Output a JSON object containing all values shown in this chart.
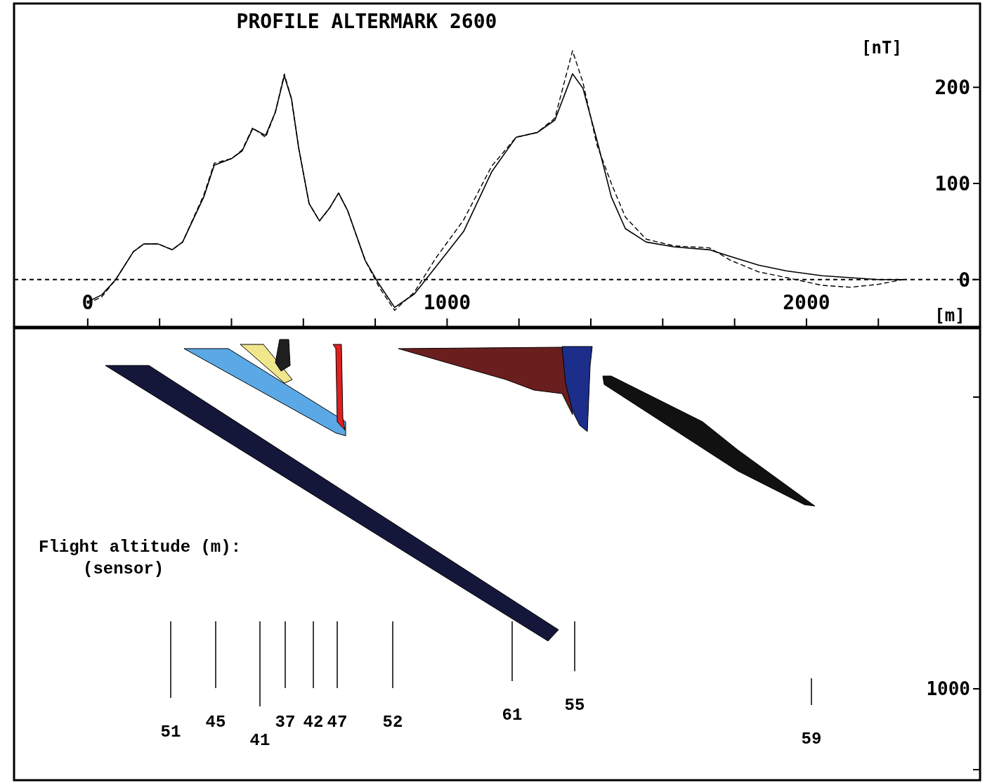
{
  "chart_data": [
    {
      "type": "line",
      "title": "PROFILE ALTERMARK 2600",
      "xlabel": "[m]",
      "ylabel": "[nT]",
      "xlim": [
        -205,
        2483
      ],
      "ylim": [
        -47,
        285
      ],
      "xticks": [
        0,
        {
          "value": 200,
          "label": null
        },
        {
          "value": 400,
          "label": null
        },
        {
          "value": 600,
          "label": null
        },
        {
          "value": 800,
          "label": null
        },
        1000,
        {
          "value": 1200,
          "label": null
        },
        {
          "value": 1400,
          "label": null
        },
        {
          "value": 1600,
          "label": null
        },
        {
          "value": 1800,
          "label": null
        },
        2000,
        {
          "value": 2200,
          "label": null
        }
      ],
      "yticks": [
        0,
        100,
        200
      ],
      "grid": false,
      "ref_lines": [
        {
          "axis": "y",
          "value": 0,
          "line_style": "dashed",
          "color": "#000000"
        }
      ],
      "series": [
        {
          "color": "#000000",
          "line_style": "dashed",
          "x": [
            0,
            39,
            78,
            127,
            156,
            196,
            235,
            264,
            323,
            352,
            401,
            430,
            459,
            495,
            522,
            547,
            567,
            587,
            616,
            645,
            674,
            698,
            723,
            772,
            811,
            854,
            909,
            968,
            1046,
            1124,
            1192,
            1251,
            1300,
            1349,
            1378,
            1417,
            1457,
            1496,
            1554,
            1632,
            1730,
            1789,
            1867,
            1945,
            2043,
            2121,
            2199,
            2268
          ],
          "values": [
            -25,
            -18,
            0,
            29,
            37,
            37,
            31,
            39,
            88,
            121,
            126,
            135,
            158,
            148,
            174,
            214,
            188,
            137,
            79,
            61,
            75,
            90,
            72,
            20,
            -8,
            -32,
            -13,
            22,
            62,
            118,
            148,
            153,
            168,
            238,
            205,
            140,
            100,
            65,
            42,
            35,
            33,
            20,
            8,
            2,
            -6,
            -8,
            -5,
            0
          ]
        },
        {
          "color": "#000000",
          "line_style": "solid",
          "x": [
            0,
            39,
            78,
            127,
            156,
            196,
            235,
            264,
            323,
            352,
            401,
            430,
            459,
            495,
            522,
            547,
            567,
            587,
            616,
            645,
            674,
            698,
            723,
            772,
            811,
            854,
            909,
            968,
            1046,
            1124,
            1192,
            1251,
            1300,
            1349,
            1378,
            1417,
            1457,
            1496,
            1554,
            1632,
            1730,
            1789,
            1867,
            1945,
            2043,
            2121,
            2199,
            2268
          ],
          "values": [
            -23,
            -16,
            0,
            29,
            37,
            37,
            31,
            39,
            86,
            119,
            126,
            134,
            157,
            150,
            174,
            212,
            188,
            137,
            79,
            61,
            75,
            90,
            72,
            20,
            -5,
            -29,
            -15,
            13,
            50,
            112,
            148,
            153,
            166,
            214,
            199,
            145,
            86,
            53,
            39,
            34,
            31,
            24,
            15,
            9,
            4,
            2,
            0,
            0
          ]
        }
      ]
    },
    {
      "type": "other",
      "annotations": [
        "Flight altitude (m):",
        "(sensor)",
        "1000",
        "51",
        "45",
        "41",
        "37",
        "42",
        "47",
        "52",
        "61",
        "55",
        "59"
      ]
    }
  ]
}
